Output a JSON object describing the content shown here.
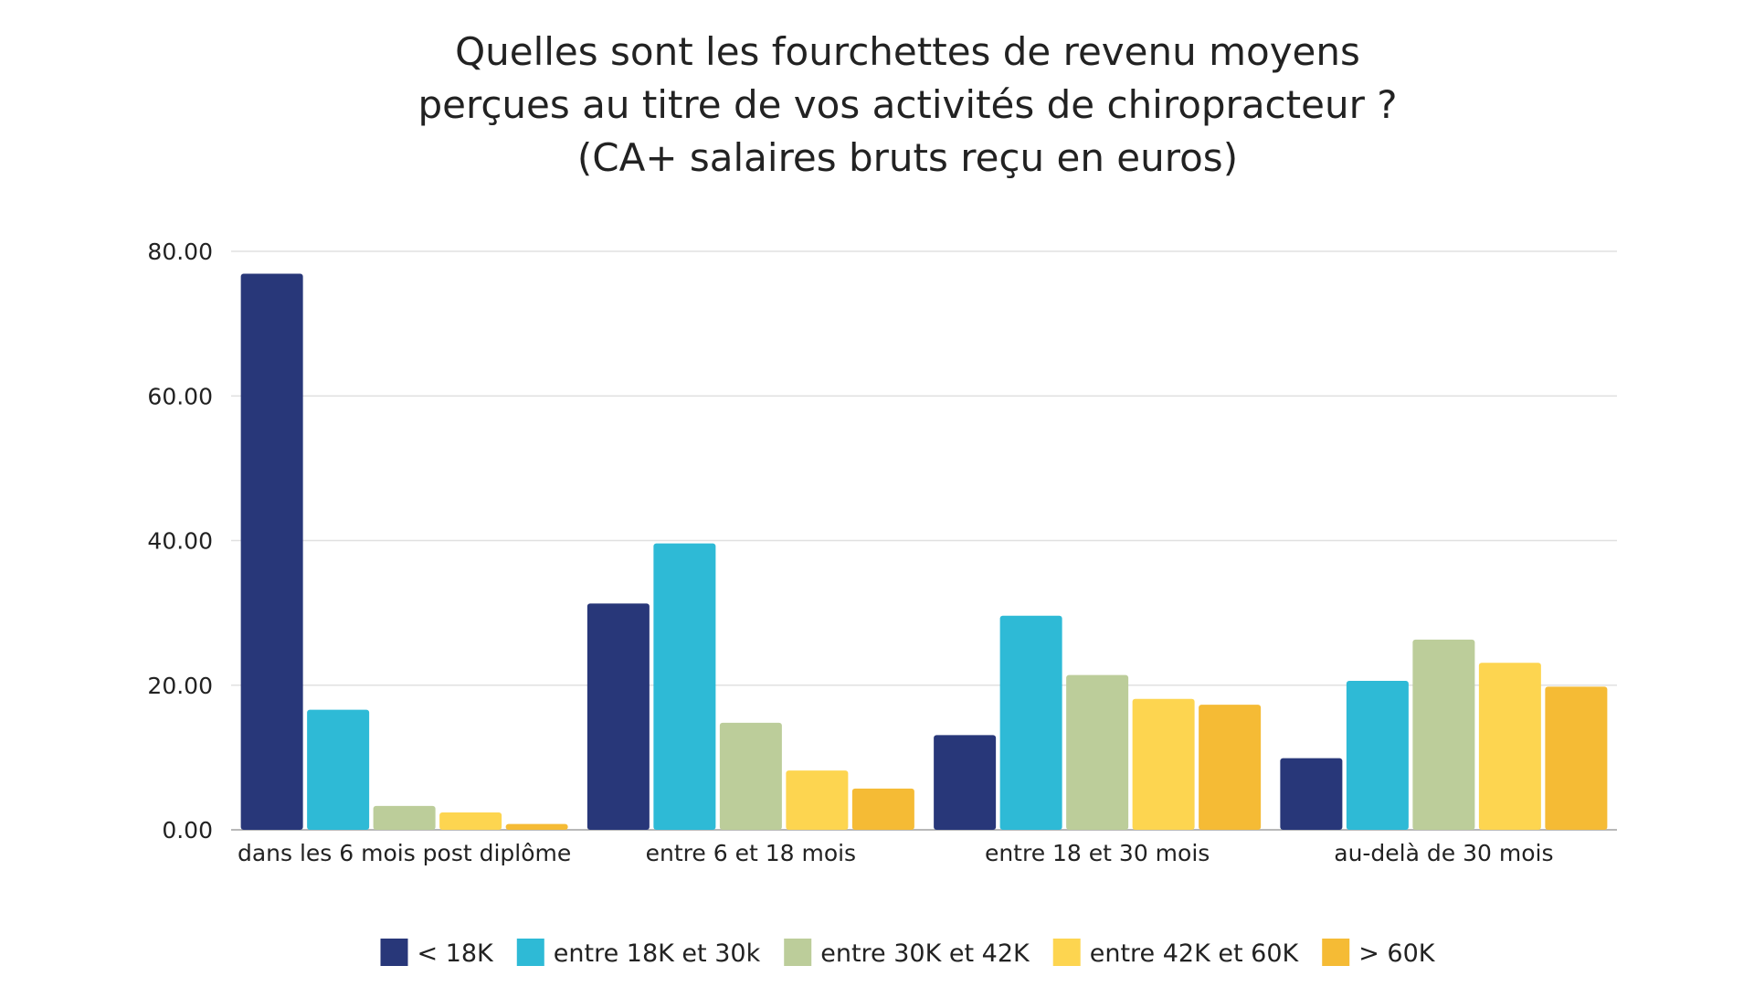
{
  "chart_data": {
    "type": "bar",
    "title_lines": [
      "Quelles sont les fourchettes de revenu moyens",
      "perçues au titre de vos activités de chiropracteur ?",
      "(CA+ salaires bruts reçu en euros)"
    ],
    "categories": [
      "dans les 6 mois post diplôme",
      "entre 6 et 18 mois",
      "entre 18 et 30 mois",
      "au-delà de 30 mois"
    ],
    "series": [
      {
        "name": "< 18K",
        "color": "#283779",
        "values": [
          76.9,
          31.3,
          13.1,
          9.9
        ]
      },
      {
        "name": "entre 18K et 30k",
        "color": "#2ebad6",
        "values": [
          16.6,
          39.6,
          29.6,
          20.6
        ]
      },
      {
        "name": "entre 30K et 42K",
        "color": "#bccd9a",
        "values": [
          3.3,
          14.8,
          21.4,
          26.3
        ]
      },
      {
        "name": "entre 42K et 60K",
        "color": "#fdd550",
        "values": [
          2.4,
          8.2,
          18.1,
          23.1
        ]
      },
      {
        "name": "> 60K",
        "color": "#f5bb35",
        "values": [
          0.8,
          5.7,
          17.3,
          19.8
        ]
      }
    ],
    "y_ticks": [
      "0.00",
      "20.00",
      "40.00",
      "60.00",
      "80.00"
    ],
    "ylim": [
      0,
      80
    ],
    "grid": true,
    "legend_position": "bottom"
  }
}
